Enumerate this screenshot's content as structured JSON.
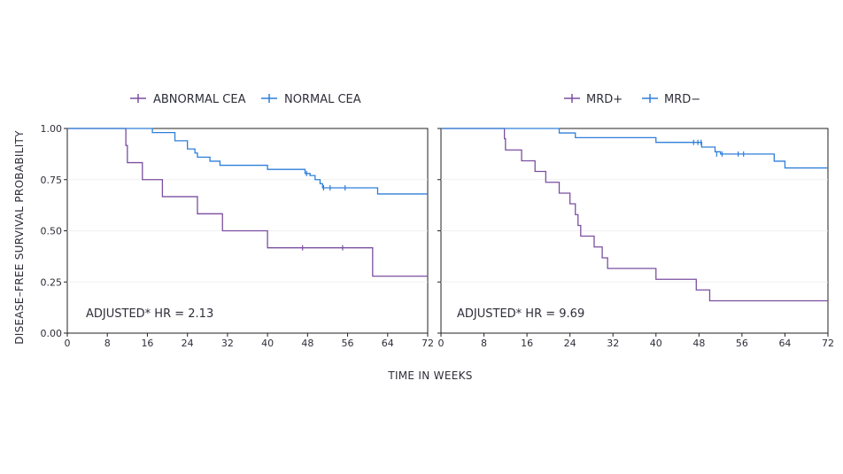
{
  "chart_data": [
    {
      "type": "line",
      "chart_kind": "kaplan-meier step",
      "title": "",
      "xlabel": "TIME IN WEEKS",
      "ylabel": "DISEASE–FREE SURVIVAL PROBABILITY",
      "xlim": [
        0,
        72
      ],
      "ylim": [
        0,
        1
      ],
      "xticks": [
        "0",
        "8",
        "16",
        "24",
        "32",
        "40",
        "48",
        "56",
        "64",
        "72"
      ],
      "yticks": [
        "0.00",
        "0.25",
        "0.50",
        "0.75",
        "1.00"
      ],
      "annotation": "ADJUSTED* HR = 2.13",
      "series": [
        {
          "name": "ABNORMAL CEA",
          "color": "#7b4fa0",
          "steps": [
            [
              0,
              1.0
            ],
            [
              11.7,
              0.917
            ],
            [
              12,
              0.833
            ],
            [
              15,
              0.75
            ],
            [
              19,
              0.667
            ],
            [
              26,
              0.583
            ],
            [
              31,
              0.5
            ],
            [
              40,
              0.417
            ],
            [
              61,
              0.278
            ],
            [
              72,
              0.278
            ]
          ],
          "censors": [
            [
              47,
              0.417
            ],
            [
              55,
              0.417
            ]
          ]
        },
        {
          "name": "NORMAL CEA",
          "color": "#2e7fd9",
          "steps": [
            [
              0,
              1.0
            ],
            [
              17,
              0.98
            ],
            [
              21.5,
              0.94
            ],
            [
              24,
              0.9
            ],
            [
              25.5,
              0.88
            ],
            [
              26,
              0.86
            ],
            [
              28.5,
              0.84
            ],
            [
              30.5,
              0.82
            ],
            [
              40,
              0.8
            ],
            [
              47.5,
              0.78
            ],
            [
              48.5,
              0.77
            ],
            [
              49.5,
              0.75
            ],
            [
              50.5,
              0.73
            ],
            [
              51,
              0.71
            ],
            [
              62,
              0.68
            ],
            [
              72,
              0.68
            ]
          ],
          "censors": [
            [
              47.8,
              0.78
            ],
            [
              51.2,
              0.71
            ],
            [
              52.5,
              0.71
            ],
            [
              55.5,
              0.71
            ]
          ]
        }
      ]
    },
    {
      "type": "line",
      "chart_kind": "kaplan-meier step",
      "title": "",
      "xlabel": "TIME IN WEEKS",
      "ylabel": "DISEASE–FREE SURVIVAL PROBABILITY",
      "xlim": [
        0,
        72
      ],
      "ylim": [
        0,
        1
      ],
      "xticks": [
        "0",
        "8",
        "16",
        "24",
        "32",
        "40",
        "48",
        "56",
        "64",
        "72"
      ],
      "yticks": [
        "0.00",
        "0.25",
        "0.50",
        "0.75",
        "1.00"
      ],
      "annotation": "ADJUSTED* HR = 9.69",
      "series": [
        {
          "name": "MRD+",
          "color": "#7b4fa0",
          "steps": [
            [
              0,
              1.0
            ],
            [
              11.8,
              0.95
            ],
            [
              12,
              0.895
            ],
            [
              15,
              0.842
            ],
            [
              17.5,
              0.79
            ],
            [
              19.5,
              0.737
            ],
            [
              22,
              0.684
            ],
            [
              24,
              0.632
            ],
            [
              25,
              0.579
            ],
            [
              25.5,
              0.526
            ],
            [
              26,
              0.474
            ],
            [
              28.5,
              0.421
            ],
            [
              30,
              0.368
            ],
            [
              31,
              0.316
            ],
            [
              40,
              0.263
            ],
            [
              47.5,
              0.211
            ],
            [
              50,
              0.158
            ],
            [
              72,
              0.158
            ]
          ],
          "censors": []
        },
        {
          "name": "MRD−",
          "color": "#2e7fd9",
          "steps": [
            [
              0,
              1.0
            ],
            [
              22,
              0.978
            ],
            [
              25,
              0.955
            ],
            [
              40,
              0.932
            ],
            [
              48.5,
              0.909
            ],
            [
              51,
              0.886
            ],
            [
              52,
              0.875
            ],
            [
              62,
              0.84
            ],
            [
              64,
              0.807
            ],
            [
              72,
              0.807
            ]
          ],
          "censors": [
            [
              47,
              0.932
            ],
            [
              47.8,
              0.932
            ],
            [
              48.4,
              0.932
            ],
            [
              51.3,
              0.875
            ],
            [
              52.3,
              0.875
            ],
            [
              55.3,
              0.875
            ],
            [
              56.3,
              0.875
            ]
          ]
        }
      ]
    }
  ]
}
